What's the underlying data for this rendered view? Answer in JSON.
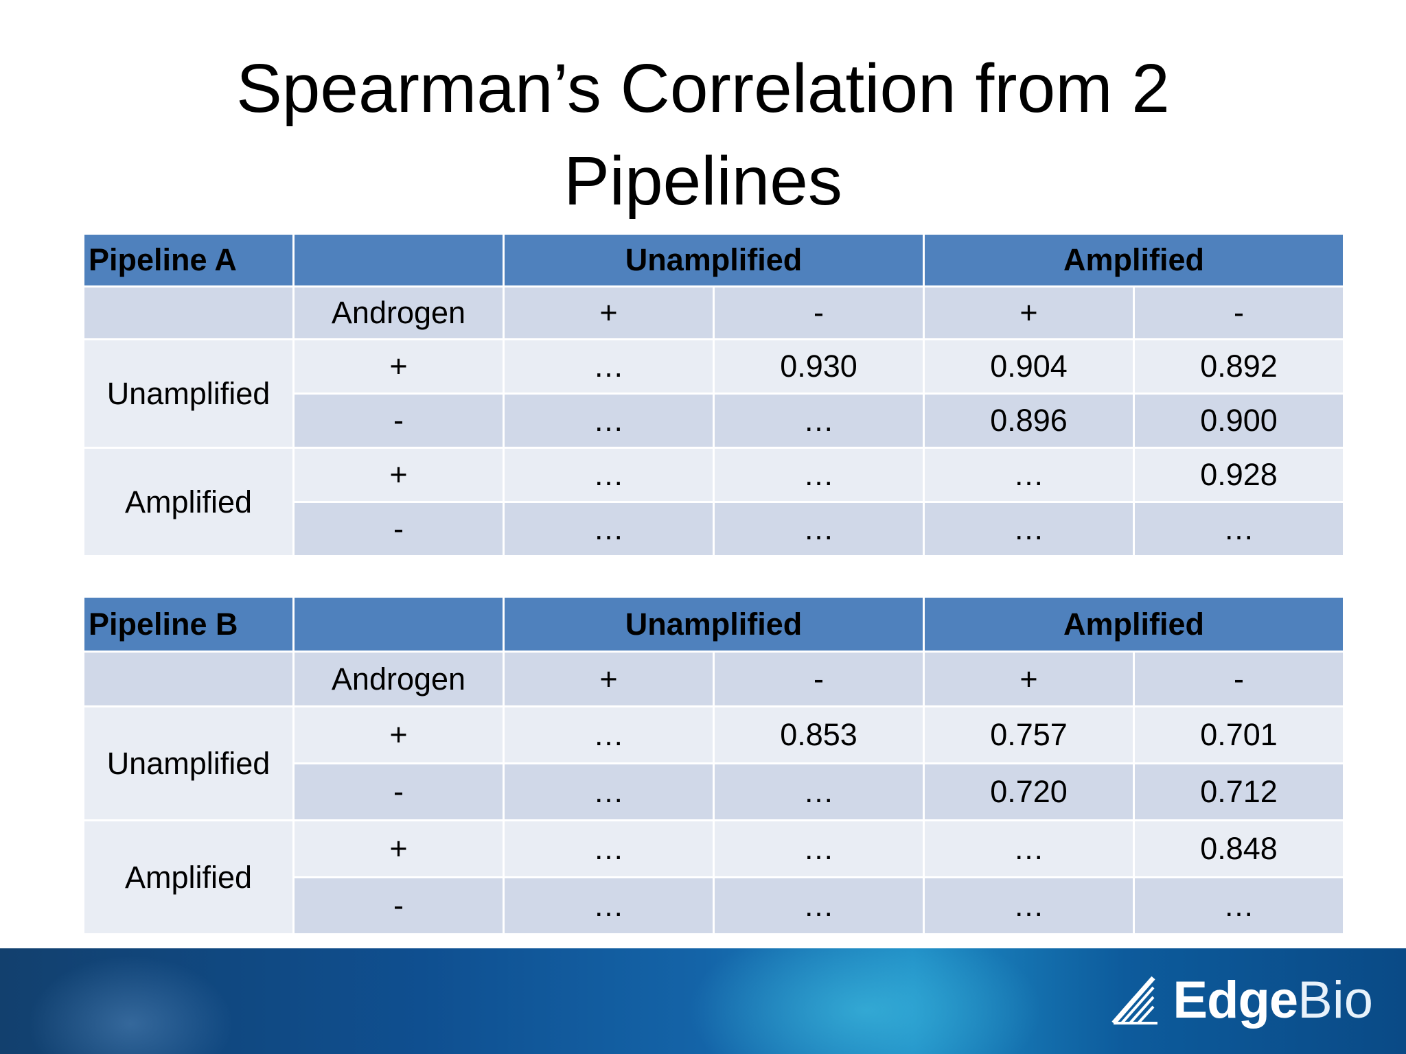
{
  "slide": {
    "title_line1": "Spearman’s Correlation from 2",
    "title_line2": "Pipelines"
  },
  "tables": [
    {
      "name": "Pipeline A",
      "group_headers": [
        "Unamplified",
        "Amplified"
      ],
      "androgen_label": "Androgen",
      "signs": [
        "+",
        "-",
        "+",
        "-"
      ],
      "groups": [
        {
          "label": "Unamplified",
          "rows": [
            {
              "sign": "+",
              "values": [
                "…",
                "0.930",
                "0.904",
                "0.892"
              ]
            },
            {
              "sign": "-",
              "values": [
                "…",
                "…",
                "0.896",
                "0.900"
              ]
            }
          ]
        },
        {
          "label": "Amplified",
          "rows": [
            {
              "sign": "+",
              "values": [
                "…",
                "…",
                "…",
                "0.928"
              ]
            },
            {
              "sign": "-",
              "values": [
                "…",
                "…",
                "…",
                "…"
              ]
            }
          ]
        }
      ]
    },
    {
      "name": "Pipeline B",
      "group_headers": [
        "Unamplified",
        "Amplified"
      ],
      "androgen_label": "Androgen",
      "signs": [
        "+",
        "-",
        "+",
        "-"
      ],
      "groups": [
        {
          "label": "Unamplified",
          "rows": [
            {
              "sign": "+",
              "values": [
                "…",
                "0.853",
                "0.757",
                "0.701"
              ]
            },
            {
              "sign": "-",
              "values": [
                "…",
                "…",
                "0.720",
                "0.712"
              ]
            }
          ]
        },
        {
          "label": "Amplified",
          "rows": [
            {
              "sign": "+",
              "values": [
                "…",
                "…",
                "…",
                "0.848"
              ]
            },
            {
              "sign": "-",
              "values": [
                "…",
                "…",
                "…",
                "…"
              ]
            }
          ]
        }
      ]
    }
  ],
  "footer": {
    "logo_edge": "Edge",
    "logo_bio": "Bio",
    "logo_icon": "edgebio-logo-icon"
  },
  "colors": {
    "header_blue": "#4f81bd",
    "row_light": "#e9edf4",
    "row_dark": "#d0d8e8"
  }
}
